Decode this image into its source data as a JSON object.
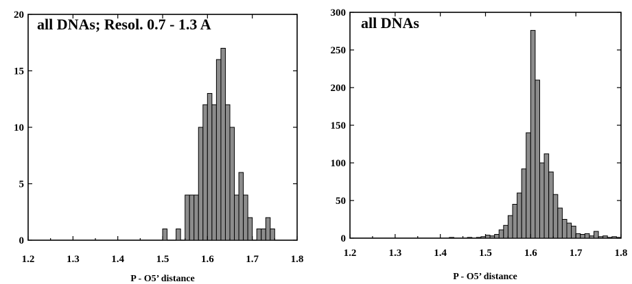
{
  "chart_data": [
    {
      "type": "bar",
      "title": "all DNAs; Resol. 0.7 - 1.3 A",
      "xlabel": "P - O5’ distance",
      "ylabel": "",
      "xlim": [
        1.2,
        1.8
      ],
      "ylim": [
        0,
        20
      ],
      "xticks": [
        "1.2",
        "1.3",
        "1.4",
        "1.5",
        "1.6",
        "1.7",
        "1.8"
      ],
      "yticks": [
        "0",
        "5",
        "10",
        "15",
        "20"
      ],
      "grid": false,
      "bin_width": 0.01,
      "x": [
        1.5,
        1.53,
        1.55,
        1.56,
        1.57,
        1.58,
        1.59,
        1.6,
        1.61,
        1.62,
        1.63,
        1.64,
        1.65,
        1.66,
        1.67,
        1.68,
        1.69,
        1.7,
        1.71,
        1.72,
        1.73,
        1.74
      ],
      "values": [
        1,
        1,
        4,
        4,
        4,
        10,
        12,
        13,
        12,
        16,
        17,
        12,
        10,
        4,
        6,
        4,
        2,
        0,
        1,
        1,
        2,
        1
      ]
    },
    {
      "type": "bar",
      "title": "all DNAs",
      "xlabel": "P - O5’ distance",
      "ylabel": "",
      "xlim": [
        1.2,
        1.8
      ],
      "ylim": [
        0,
        300
      ],
      "xticks": [
        "1.2",
        "1.3",
        "1.4",
        "1.5",
        "1.6",
        "1.7",
        "1.8"
      ],
      "yticks": [
        "0",
        "50",
        "100",
        "150",
        "200",
        "250",
        "300"
      ],
      "grid": false,
      "bin_width": 0.01,
      "x": [
        1.42,
        1.46,
        1.48,
        1.49,
        1.5,
        1.51,
        1.52,
        1.53,
        1.54,
        1.55,
        1.56,
        1.57,
        1.58,
        1.59,
        1.6,
        1.61,
        1.62,
        1.63,
        1.64,
        1.65,
        1.66,
        1.67,
        1.68,
        1.69,
        1.7,
        1.71,
        1.72,
        1.73,
        1.74,
        1.75,
        1.76,
        1.77,
        1.78,
        1.79
      ],
      "values": [
        1,
        1,
        1,
        2,
        4,
        3,
        5,
        11,
        17,
        30,
        45,
        60,
        92,
        140,
        276,
        210,
        100,
        112,
        88,
        58,
        40,
        25,
        20,
        16,
        6,
        5,
        6,
        3,
        9,
        2,
        3,
        1,
        2,
        1
      ]
    }
  ]
}
